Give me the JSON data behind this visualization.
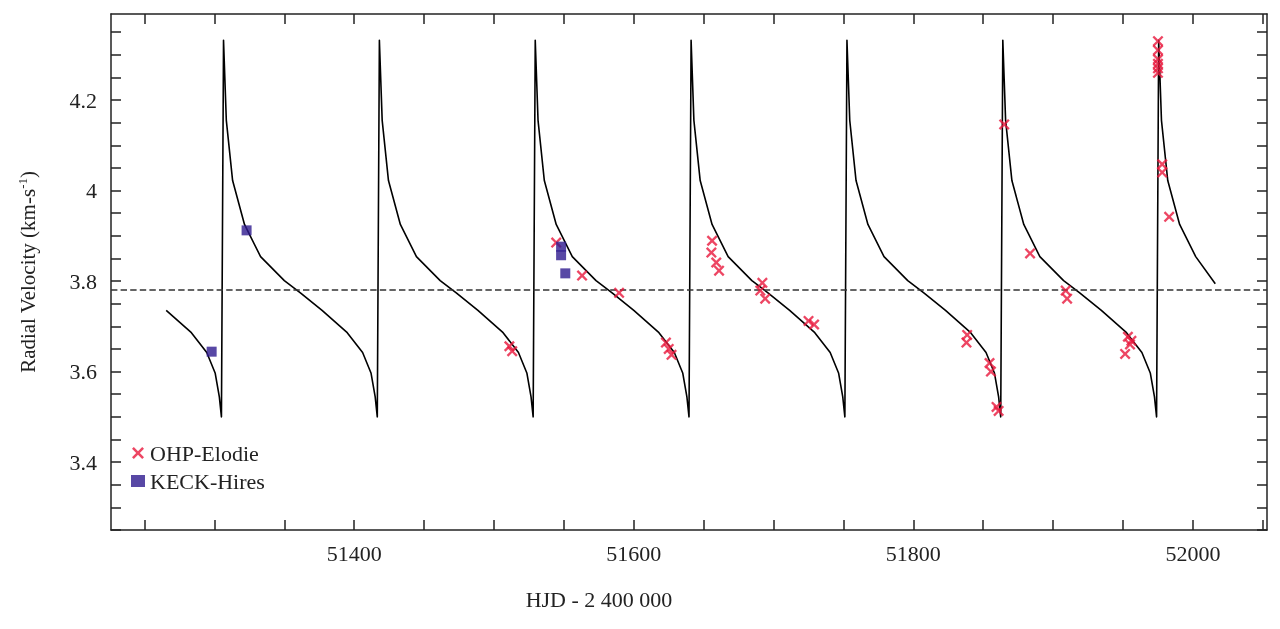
{
  "chart_data": {
    "type": "scatter",
    "xlabel": "HJD - 2 400 000",
    "ylabel": "Radial Velocity (km-s$^{-1}$)",
    "xlim": [
      51226,
      52053
    ],
    "xticks": [
      {
        "value": 51250,
        "label": null
      },
      {
        "value": 51300,
        "label": null
      },
      {
        "value": 51350,
        "label": null
      },
      51400,
      {
        "value": 51450,
        "label": null
      },
      {
        "value": 51500,
        "label": null
      },
      {
        "value": 51550,
        "label": null
      },
      51600,
      {
        "value": 51650,
        "label": null
      },
      {
        "value": 51700,
        "label": null
      },
      {
        "value": 51750,
        "label": null
      },
      51800,
      {
        "value": 51850,
        "label": null
      },
      {
        "value": 51900,
        "label": null
      },
      {
        "value": 51950,
        "label": null
      },
      52000,
      {
        "value": 52050,
        "label": null
      }
    ],
    "ylim": [
      3.25,
      4.39
    ],
    "yticks": [
      {
        "value": 3.25,
        "label": null
      },
      {
        "value": 3.3,
        "label": null
      },
      {
        "value": 3.35,
        "label": null
      },
      3.4,
      {
        "value": 3.45,
        "label": null
      },
      {
        "value": 3.5,
        "label": null
      },
      {
        "value": 3.55,
        "label": null
      },
      3.6,
      {
        "value": 3.65,
        "label": null
      },
      {
        "value": 3.7,
        "label": null
      },
      {
        "value": 3.75,
        "label": null
      },
      3.8,
      {
        "value": 3.85,
        "label": null
      },
      {
        "value": 3.9,
        "label": null
      },
      {
        "value": 3.95,
        "label": null
      },
      4,
      {
        "value": 4.05,
        "label": null
      },
      {
        "value": 4.1,
        "label": null
      },
      {
        "value": 4.15,
        "label": null
      },
      4.2,
      {
        "value": 4.25,
        "label": null
      },
      {
        "value": 4.3,
        "label": null
      },
      {
        "value": 4.35,
        "label": null
      }
    ],
    "grid": false,
    "legend": "bottom left",
    "ref_lines": [
      {
        "axis": "y",
        "value": 3.777,
        "label": null,
        "color": "#333333",
        "line_style": "dashed"
      }
    ],
    "series": [
      {
        "type": "line",
        "color": "#000000",
        "marker": "none",
        "line_style": "solid",
        "x": [
          51265.5,
          51283.5,
          51294.5,
          51300.5,
          51303.5,
          51305,
          51306.5,
          51308.5,
          51313,
          51321.5,
          51333,
          51350,
          51361.5,
          51377,
          51395,
          51406,
          51412,
          51415,
          51416.5,
          51418,
          51420,
          51424.5,
          51433,
          51444.5,
          51461.5,
          51473,
          51488.5,
          51506.5,
          51517.5,
          51523.5,
          51526.5,
          51528,
          51529.5,
          51531.5,
          51536,
          51544.5,
          51556,
          51573,
          51584.5,
          51600,
          51618,
          51629,
          51635,
          51638,
          51639.5,
          51641,
          51643,
          51647.5,
          51656,
          51667.5,
          51684.5,
          51696,
          51711.5,
          51729.5,
          51740.5,
          51746.5,
          51749.5,
          51751,
          51752.5,
          51754.5,
          51759,
          51767.5,
          51779,
          51796,
          51807.5,
          51823,
          51841,
          51852,
          51858,
          51861,
          51862.5,
          51864,
          51866,
          51870.5,
          51879,
          51890.5,
          51907.5,
          51919,
          51934.5,
          51952.5,
          51963.5,
          51969.5,
          51972.5,
          51974,
          51975.5,
          51977.5,
          51982,
          51990.5,
          52002,
          52016
        ],
        "values": [
          3.735,
          3.686,
          3.642,
          3.597,
          3.544,
          3.5,
          4.332,
          4.155,
          4.022,
          3.925,
          3.854,
          3.801,
          3.774,
          3.735,
          3.686,
          3.642,
          3.597,
          3.544,
          3.5,
          4.332,
          4.155,
          4.022,
          3.925,
          3.854,
          3.801,
          3.774,
          3.735,
          3.686,
          3.642,
          3.597,
          3.544,
          3.5,
          4.332,
          4.155,
          4.022,
          3.925,
          3.854,
          3.801,
          3.774,
          3.735,
          3.686,
          3.642,
          3.597,
          3.544,
          3.5,
          4.332,
          4.155,
          4.022,
          3.925,
          3.854,
          3.801,
          3.774,
          3.735,
          3.686,
          3.642,
          3.597,
          3.544,
          3.5,
          4.332,
          4.155,
          4.022,
          3.925,
          3.854,
          3.801,
          3.774,
          3.735,
          3.686,
          3.642,
          3.597,
          3.544,
          3.5,
          4.332,
          4.155,
          4.022,
          3.925,
          3.854,
          3.801,
          3.774,
          3.735,
          3.686,
          3.642,
          3.597,
          3.544,
          3.5,
          4.332,
          4.155,
          4.022,
          3.925,
          3.854,
          3.794
        ]
      },
      {
        "name": "OHP-Elodie",
        "color": "#e8183c",
        "marker": "cross",
        "x": [
          51511,
          51513,
          51544.5,
          51563,
          51589.5,
          51623,
          51625,
          51627,
          51655.5,
          51656,
          51659,
          51661,
          51690.5,
          51692,
          51694,
          51725,
          51729,
          51838,
          51838.5,
          51854.5,
          51855.5,
          51859.5,
          51861,
          51865,
          51883.5,
          51909,
          51910,
          51951.5,
          51953.5,
          51955,
          51956,
          51975,
          51975,
          51975,
          51975,
          51975,
          51975,
          51978,
          51978,
          51983
        ],
        "values": [
          3.656,
          3.645,
          3.885,
          3.812,
          3.774,
          3.664,
          3.65,
          3.637,
          3.863,
          3.889,
          3.841,
          3.823,
          3.779,
          3.796,
          3.761,
          3.712,
          3.704,
          3.664,
          3.681,
          3.619,
          3.6,
          3.522,
          3.513,
          4.146,
          3.861,
          3.779,
          3.761,
          3.639,
          3.677,
          3.66,
          3.668,
          4.33,
          4.31,
          4.29,
          4.28,
          4.27,
          4.26,
          4.058,
          4.04,
          3.942
        ]
      },
      {
        "name": "KECK-Hires",
        "color": "#2e1a8e",
        "marker": "square",
        "x": [
          51298,
          51323,
          51548,
          51548,
          51551
        ],
        "values": [
          3.644,
          3.912,
          3.876,
          3.857,
          3.817
        ]
      }
    ]
  }
}
